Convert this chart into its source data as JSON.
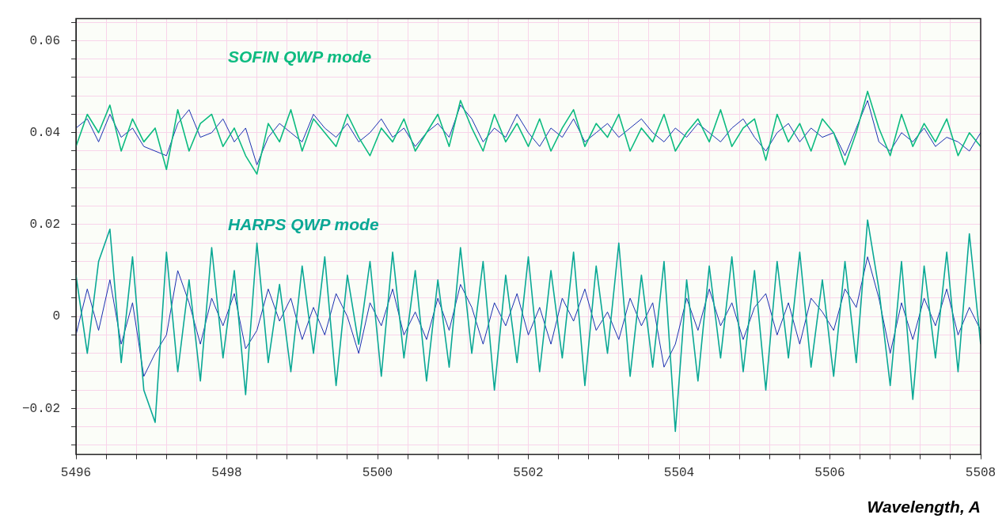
{
  "chart_data": {
    "type": "line",
    "xlabel": "Wavelength, A",
    "x": [
      5496,
      5496.15,
      5496.3,
      5496.45,
      5496.6,
      5496.75,
      5496.9,
      5497.05,
      5497.2,
      5497.35,
      5497.5,
      5497.65,
      5497.8,
      5497.95,
      5498.1,
      5498.25,
      5498.4,
      5498.55,
      5498.7,
      5498.85,
      5499,
      5499.15,
      5499.3,
      5499.45,
      5499.6,
      5499.75,
      5499.9,
      5500.05,
      5500.2,
      5500.35,
      5500.5,
      5500.65,
      5500.8,
      5500.95,
      5501.1,
      5501.25,
      5501.4,
      5501.55,
      5501.7,
      5501.85,
      5502,
      5502.15,
      5502.3,
      5502.45,
      5502.6,
      5502.75,
      5502.9,
      5503.05,
      5503.2,
      5503.35,
      5503.5,
      5503.65,
      5503.8,
      5503.95,
      5504.1,
      5504.25,
      5504.4,
      5504.55,
      5504.7,
      5504.85,
      5505,
      5505.15,
      5505.3,
      5505.45,
      5505.6,
      5505.75,
      5505.9,
      5506.05,
      5506.2,
      5506.35,
      5506.5,
      5506.65,
      5506.8,
      5506.95,
      5507.1,
      5507.25,
      5507.4,
      5507.55,
      5507.7,
      5507.85,
      5508
    ],
    "series": [
      {
        "color": "#1a2fb0",
        "values": [
          0.041,
          0.043,
          0.038,
          0.044,
          0.039,
          0.041,
          0.037,
          0.036,
          0.035,
          0.042,
          0.045,
          0.039,
          0.04,
          0.043,
          0.038,
          0.041,
          0.033,
          0.039,
          0.042,
          0.04,
          0.038,
          0.044,
          0.041,
          0.039,
          0.042,
          0.038,
          0.04,
          0.043,
          0.039,
          0.041,
          0.037,
          0.04,
          0.042,
          0.039,
          0.046,
          0.043,
          0.038,
          0.041,
          0.039,
          0.044,
          0.04,
          0.037,
          0.041,
          0.039,
          0.043,
          0.038,
          0.04,
          0.042,
          0.039,
          0.041,
          0.043,
          0.04,
          0.038,
          0.041,
          0.039,
          0.042,
          0.04,
          0.038,
          0.041,
          0.043,
          0.039,
          0.036,
          0.04,
          0.042,
          0.038,
          0.041,
          0.039,
          0.04,
          0.035,
          0.041,
          0.047,
          0.038,
          0.036,
          0.04,
          0.038,
          0.041,
          0.037,
          0.039,
          0.038,
          0.036,
          0.04
        ]
      },
      {
        "color": "#0dbb80",
        "values": [
          0.037,
          0.044,
          0.04,
          0.046,
          0.036,
          0.043,
          0.038,
          0.041,
          0.032,
          0.045,
          0.036,
          0.042,
          0.044,
          0.037,
          0.041,
          0.035,
          0.031,
          0.042,
          0.038,
          0.045,
          0.036,
          0.043,
          0.04,
          0.037,
          0.044,
          0.039,
          0.035,
          0.041,
          0.038,
          0.043,
          0.036,
          0.04,
          0.044,
          0.037,
          0.047,
          0.041,
          0.036,
          0.044,
          0.038,
          0.042,
          0.037,
          0.043,
          0.036,
          0.041,
          0.045,
          0.037,
          0.042,
          0.039,
          0.044,
          0.036,
          0.041,
          0.038,
          0.044,
          0.036,
          0.04,
          0.043,
          0.038,
          0.045,
          0.037,
          0.041,
          0.043,
          0.034,
          0.044,
          0.038,
          0.042,
          0.036,
          0.043,
          0.04,
          0.033,
          0.04,
          0.049,
          0.041,
          0.035,
          0.044,
          0.037,
          0.042,
          0.038,
          0.043,
          0.035,
          0.04,
          0.037
        ]
      },
      {
        "color": "#1a2fb0",
        "values": [
          -0.004,
          0.006,
          -0.003,
          0.008,
          -0.006,
          0.003,
          -0.013,
          -0.008,
          -0.004,
          0.01,
          0.003,
          -0.006,
          0.004,
          -0.002,
          0.005,
          -0.007,
          -0.003,
          0.006,
          -0.001,
          0.004,
          -0.005,
          0.002,
          -0.004,
          0.005,
          0.0,
          -0.008,
          0.003,
          -0.002,
          0.006,
          -0.004,
          0.001,
          -0.005,
          0.004,
          -0.003,
          0.007,
          0.002,
          -0.006,
          0.003,
          -0.002,
          0.005,
          -0.004,
          0.002,
          -0.006,
          0.004,
          -0.001,
          0.006,
          -0.003,
          0.001,
          -0.005,
          0.004,
          -0.002,
          0.003,
          -0.011,
          -0.006,
          0.004,
          -0.003,
          0.006,
          -0.002,
          0.003,
          -0.005,
          0.002,
          0.005,
          -0.004,
          0.003,
          -0.006,
          0.004,
          0.001,
          -0.003,
          0.006,
          0.002,
          0.013,
          0.004,
          -0.008,
          0.003,
          -0.005,
          0.004,
          -0.002,
          0.006,
          -0.004,
          0.002,
          -0.003
        ]
      },
      {
        "color": "#0aa895",
        "values": [
          0.009,
          -0.008,
          0.012,
          0.019,
          -0.01,
          0.013,
          -0.016,
          -0.023,
          0.014,
          -0.012,
          0.008,
          -0.014,
          0.015,
          -0.009,
          0.01,
          -0.017,
          0.016,
          -0.01,
          0.007,
          -0.012,
          0.011,
          -0.008,
          0.013,
          -0.015,
          0.009,
          -0.006,
          0.012,
          -0.013,
          0.014,
          -0.009,
          0.01,
          -0.014,
          0.008,
          -0.011,
          0.015,
          -0.008,
          0.012,
          -0.016,
          0.009,
          -0.01,
          0.013,
          -0.012,
          0.01,
          -0.009,
          0.014,
          -0.015,
          0.011,
          -0.008,
          0.016,
          -0.013,
          0.009,
          -0.011,
          0.012,
          -0.025,
          0.008,
          -0.014,
          0.011,
          -0.009,
          0.013,
          -0.012,
          0.01,
          -0.016,
          0.012,
          -0.009,
          0.014,
          -0.011,
          0.008,
          -0.013,
          0.012,
          -0.01,
          0.021,
          0.006,
          -0.015,
          0.012,
          -0.018,
          0.011,
          -0.009,
          0.014,
          -0.012,
          0.018,
          -0.006
        ]
      }
    ],
    "xlim": [
      5496,
      5508
    ],
    "xticks": [
      5496,
      {
        "value": 5496.4,
        "label": null
      },
      {
        "value": 5496.8,
        "label": null
      },
      {
        "value": 5497.2,
        "label": null
      },
      {
        "value": 5497.6,
        "label": null
      },
      5498,
      {
        "value": 5498.4,
        "label": null
      },
      {
        "value": 5498.8,
        "label": null
      },
      {
        "value": 5499.2,
        "label": null
      },
      {
        "value": 5499.6,
        "label": null
      },
      5500,
      {
        "value": 5500.4,
        "label": null
      },
      {
        "value": 5500.8,
        "label": null
      },
      {
        "value": 5501.2,
        "label": null
      },
      {
        "value": 5501.6,
        "label": null
      },
      5502,
      {
        "value": 5502.4,
        "label": null
      },
      {
        "value": 5502.8,
        "label": null
      },
      {
        "value": 5503.2,
        "label": null
      },
      {
        "value": 5503.6,
        "label": null
      },
      5504,
      {
        "value": 5504.4,
        "label": null
      },
      {
        "value": 5504.8,
        "label": null
      },
      {
        "value": 5505.2,
        "label": null
      },
      {
        "value": 5505.6,
        "label": null
      },
      5506,
      {
        "value": 5506.4,
        "label": null
      },
      {
        "value": 5506.8,
        "label": null
      },
      {
        "value": 5507.2,
        "label": null
      },
      {
        "value": 5507.6,
        "label": null
      },
      5508
    ],
    "ylim": [
      -0.03,
      0.0648
    ],
    "yticks": [
      {
        "value": -0.028,
        "label": null
      },
      {
        "value": -0.024,
        "label": null
      },
      {
        "value": -0.02,
        "label": "−0.02"
      },
      {
        "value": -0.016,
        "label": null
      },
      {
        "value": -0.012,
        "label": null
      },
      {
        "value": -0.008,
        "label": null
      },
      {
        "value": -0.004,
        "label": null
      },
      0,
      {
        "value": 0.004,
        "label": null
      },
      {
        "value": 0.008,
        "label": null
      },
      {
        "value": 0.012,
        "label": null
      },
      {
        "value": 0.016,
        "label": null
      },
      0.02,
      {
        "value": 0.024,
        "label": null
      },
      {
        "value": 0.028,
        "label": null
      },
      {
        "value": 0.032,
        "label": null
      },
      {
        "value": 0.036,
        "label": null
      },
      0.04,
      {
        "value": 0.044,
        "label": null
      },
      {
        "value": 0.048,
        "label": null
      },
      {
        "value": 0.052,
        "label": null
      },
      {
        "value": 0.056,
        "label": null
      },
      0.06,
      {
        "value": 0.064,
        "label": null
      }
    ],
    "annotations": [
      "SOFIN QWP mode",
      "HARPS QWP mode"
    ],
    "grid": true,
    "legend": false,
    "marker": "none",
    "line_style": "solid"
  }
}
